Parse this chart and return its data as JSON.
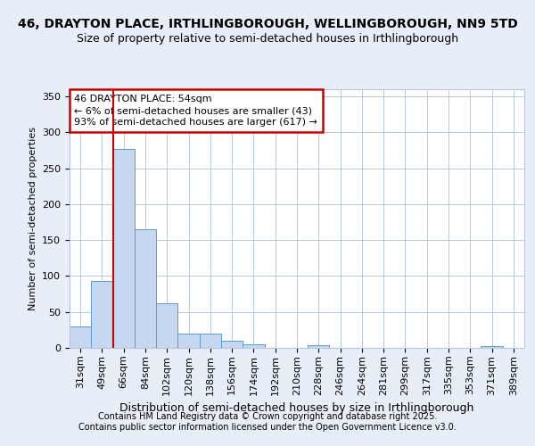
{
  "title_line1": "46, DRAYTON PLACE, IRTHLINGBOROUGH, WELLINGBOROUGH, NN9 5TD",
  "title_line2": "Size of property relative to semi-detached houses in Irthlingborough",
  "xlabel": "Distribution of semi-detached houses by size in Irthlingborough",
  "ylabel": "Number of semi-detached properties",
  "bins": [
    "31sqm",
    "49sqm",
    "66sqm",
    "84sqm",
    "102sqm",
    "120sqm",
    "138sqm",
    "156sqm",
    "174sqm",
    "192sqm",
    "210sqm",
    "228sqm",
    "246sqm",
    "264sqm",
    "281sqm",
    "299sqm",
    "317sqm",
    "335sqm",
    "353sqm",
    "371sqm",
    "389sqm"
  ],
  "values": [
    30,
    93,
    277,
    165,
    62,
    20,
    20,
    10,
    5,
    0,
    0,
    4,
    0,
    0,
    0,
    0,
    0,
    0,
    0,
    2,
    0
  ],
  "bar_color": "#c5d8ef",
  "bar_edge_color": "#5b9bd5",
  "highlight_line_index": 1,
  "highlight_color": "#cc0000",
  "annotation_text": "46 DRAYTON PLACE: 54sqm\n← 6% of semi-detached houses are smaller (43)\n93% of semi-detached houses are larger (617) →",
  "annotation_box_facecolor": "#ffffff",
  "annotation_box_edgecolor": "#cc0000",
  "ylim": [
    0,
    360
  ],
  "yticks": [
    0,
    50,
    100,
    150,
    200,
    250,
    300,
    350
  ],
  "footer_line1": "Contains HM Land Registry data © Crown copyright and database right 2025.",
  "footer_line2": "Contains public sector information licensed under the Open Government Licence v3.0.",
  "bg_color": "#e8eef8",
  "plot_bg_color": "#ffffff",
  "grid_color": "#b8c8dc",
  "title1_fontsize": 10,
  "title2_fontsize": 9,
  "ylabel_fontsize": 8,
  "xlabel_fontsize": 9,
  "tick_fontsize": 8,
  "footer_fontsize": 7
}
